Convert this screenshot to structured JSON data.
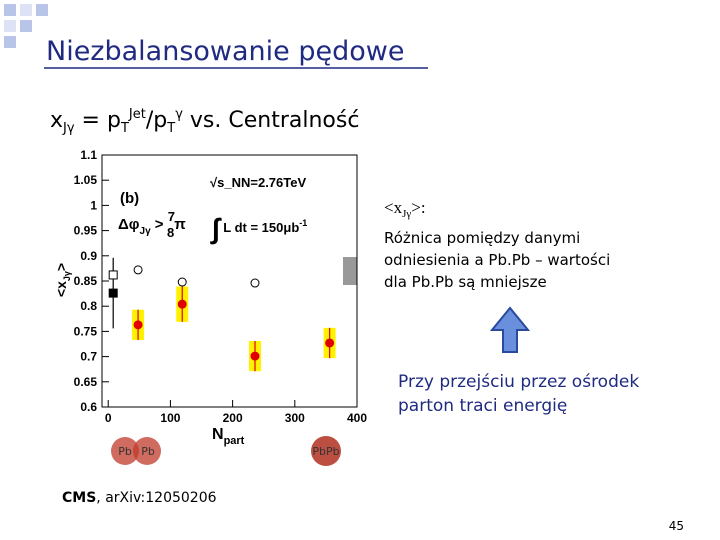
{
  "slide": {
    "title": "Niezbalansowanie pędowe",
    "subtitle": [
      "x",
      "Jγ",
      " = p",
      "T",
      "Jet",
      "/p",
      "T",
      "γ",
      "  vs. Centralność"
    ],
    "note_heading": [
      "<x",
      "Jγ",
      ">:"
    ],
    "note_lines": [
      "Różnica pomiędzy danymi",
      "odniesienia a Pb.Pb – wartości",
      "dla Pb.Pb są mniejsze"
    ],
    "conclusion_lines": [
      "Przy przejściu przez ośrodek",
      "parton traci energię"
    ],
    "nuclei": [
      "Pb",
      "Pb",
      "PbPb"
    ],
    "source": [
      "CMS",
      ", arXiv:12050206"
    ],
    "page_number": "45"
  },
  "chart_data": {
    "type": "scatter",
    "y_label": [
      "<x",
      "Jγ",
      ">"
    ],
    "x_label": [
      "N",
      "part"
    ],
    "annotations": {
      "panel": "(b)",
      "cut": [
        "Δφ",
        "Jγ",
        " > ",
        "7",
        "8",
        "π"
      ],
      "energy": "√s_NN=2.76TeV",
      "lumi": [
        "∫",
        " L dt = 150μb",
        "-1"
      ]
    },
    "xlim": [
      -10,
      400
    ],
    "xticks": [
      0,
      100,
      200,
      300,
      400
    ],
    "ylim": [
      0.6,
      1.1
    ],
    "yticks": [
      0.6,
      0.65,
      0.7,
      0.75,
      0.8,
      0.85,
      0.9,
      0.95,
      1,
      1.05,
      1.1
    ],
    "grid": false,
    "series": [
      {
        "marker": "circle-open",
        "color": "#000000",
        "x": [
          48,
          119,
          236
        ],
        "values": [
          0.872,
          0.848,
          0.846
        ]
      },
      {
        "marker": "circle",
        "color": "#e00000",
        "sys_color": "#fff200",
        "x": [
          48,
          119,
          236,
          356
        ],
        "values": [
          0.763,
          0.804,
          0.701,
          0.727
        ],
        "errors": [
          0.03,
          0.035,
          0.03,
          0.03
        ]
      },
      {
        "marker": "square",
        "color": "#000000",
        "x": [
          8
        ],
        "values": [
          0.826
        ],
        "errors": [
          0.07
        ]
      },
      {
        "marker": "square-open",
        "color": "#000000",
        "x": [
          8
        ],
        "values": [
          0.862
        ]
      }
    ]
  }
}
